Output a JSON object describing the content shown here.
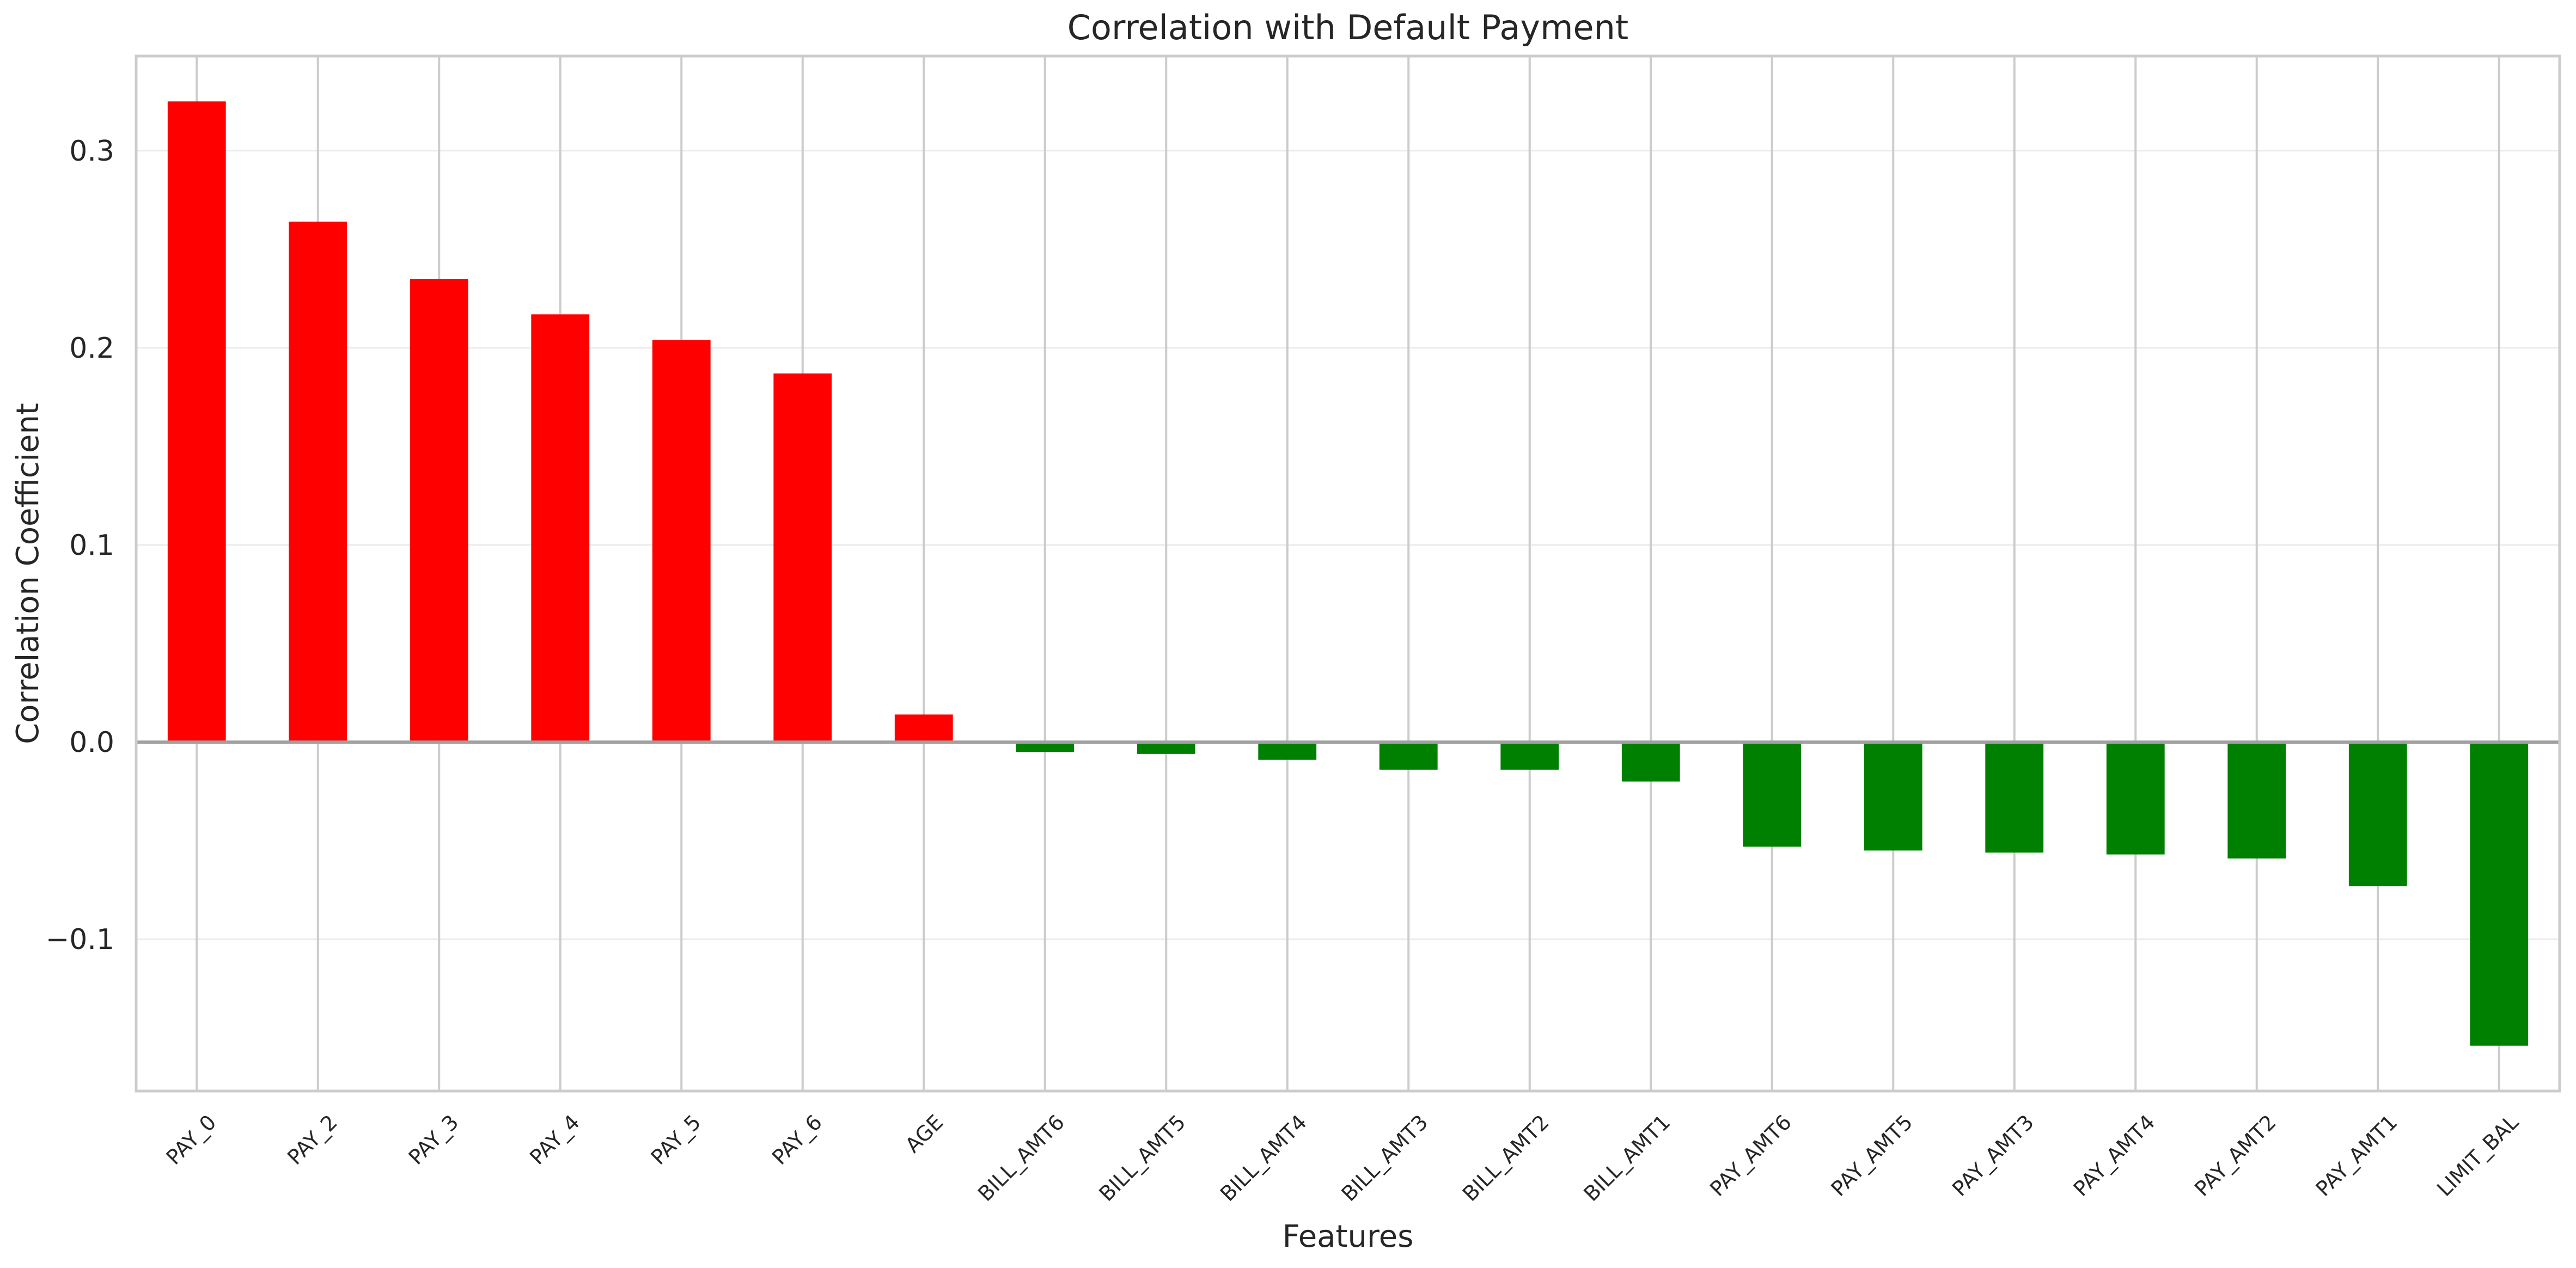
{
  "chart_data": {
    "type": "bar",
    "title": "Correlation with Default Payment",
    "xlabel": "Features",
    "ylabel": "Correlation Coefficient",
    "categories": [
      "PAY_0",
      "PAY_2",
      "PAY_3",
      "PAY_4",
      "PAY_5",
      "PAY_6",
      "AGE",
      "BILL_AMT6",
      "BILL_AMT5",
      "BILL_AMT4",
      "BILL_AMT3",
      "BILL_AMT2",
      "BILL_AMT1",
      "PAY_AMT6",
      "PAY_AMT5",
      "PAY_AMT3",
      "PAY_AMT4",
      "PAY_AMT2",
      "PAY_AMT1",
      "LIMIT_BAL"
    ],
    "values": [
      0.325,
      0.264,
      0.235,
      0.217,
      0.204,
      0.187,
      0.014,
      -0.005,
      -0.006,
      -0.009,
      -0.014,
      -0.014,
      -0.02,
      -0.053,
      -0.055,
      -0.056,
      -0.057,
      -0.059,
      -0.073,
      -0.154
    ],
    "ylim": [
      -0.177,
      0.348
    ],
    "yticks": [
      -0.1,
      0.0,
      0.1,
      0.2,
      0.3
    ],
    "ytick_labels": [
      "−0.1",
      "0.0",
      "0.1",
      "0.2",
      "0.3"
    ],
    "grid": true,
    "colors": {
      "positive": "#ff0000",
      "negative": "#008000",
      "zero_line": "#a0a0a0",
      "grid": "#ebebeb",
      "vgrid": "#cccccc",
      "spine": "#cccccc"
    }
  }
}
